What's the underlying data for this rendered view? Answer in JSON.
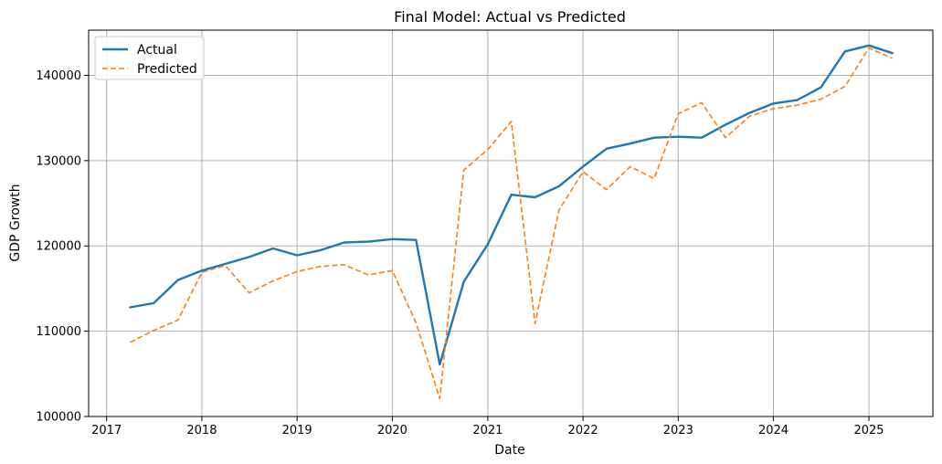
{
  "chart_data": {
    "type": "line",
    "title": "Final Model: Actual vs Predicted",
    "xlabel": "Date",
    "ylabel": "GDP Growth",
    "x_ticks": [
      "2017",
      "2018",
      "2019",
      "2020",
      "2021",
      "2022",
      "2023",
      "2024",
      "2025"
    ],
    "y_ticks": [
      "100000",
      "110000",
      "120000",
      "130000",
      "140000"
    ],
    "xlim": [
      "2016-10-24",
      "2025-09-03"
    ],
    "ylim": [
      100000,
      145300
    ],
    "grid": true,
    "legend_position": "top-left",
    "x": [
      "2017-04-01",
      "2017-07-01",
      "2017-10-01",
      "2018-01-01",
      "2018-04-01",
      "2018-07-01",
      "2018-10-01",
      "2019-01-01",
      "2019-04-01",
      "2019-07-01",
      "2019-10-01",
      "2020-01-01",
      "2020-04-01",
      "2020-07-01",
      "2020-10-01",
      "2021-01-01",
      "2021-04-01",
      "2021-07-01",
      "2021-10-01",
      "2022-01-01",
      "2022-04-01",
      "2022-07-01",
      "2022-10-01",
      "2023-01-01",
      "2023-04-01",
      "2023-07-01",
      "2023-10-01",
      "2024-01-01",
      "2024-04-01",
      "2024-07-01",
      "2024-10-01",
      "2025-01-01",
      "2025-04-01"
    ],
    "series": [
      {
        "name": "Actual",
        "color": "#1f77b4",
        "style": "solid",
        "values": [
          112800,
          113300,
          116000,
          117100,
          117900,
          118700,
          119700,
          118900,
          119500,
          120400,
          120500,
          120800,
          120700,
          106100,
          115800,
          120200,
          126000,
          125700,
          127000,
          129300,
          131400,
          132000,
          132700,
          132800,
          132700,
          134200,
          135600,
          136700,
          137100,
          138600,
          142800,
          143500,
          142600
        ]
      },
      {
        "name": "Predicted",
        "color": "#ff7f0e",
        "style": "dashed",
        "values": [
          108700,
          110100,
          111300,
          116900,
          117700,
          114500,
          115900,
          117000,
          117600,
          117800,
          116600,
          117100,
          111000,
          102100,
          128900,
          131300,
          134600,
          110900,
          124200,
          128700,
          126600,
          129300,
          127900,
          135500,
          136800,
          132700,
          135200,
          136100,
          136500,
          137200,
          138700,
          143200,
          142000
        ]
      }
    ]
  }
}
